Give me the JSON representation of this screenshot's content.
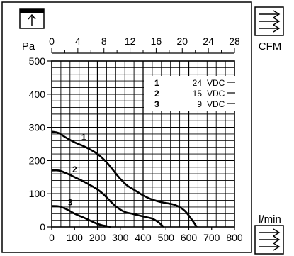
{
  "chart_data": {
    "type": "line",
    "title": "",
    "xlabel": "l/min",
    "x2label": "CFM",
    "ylabel": "Pa",
    "xlim": [
      0,
      800
    ],
    "x2lim": [
      0,
      28
    ],
    "ylim": [
      0,
      500
    ],
    "x_ticks": [
      "0",
      "100",
      "200",
      "300",
      "400",
      "500",
      "600",
      "700",
      "800"
    ],
    "x2_ticks": [
      "0",
      "4",
      "8",
      "12",
      "16",
      "20",
      "24",
      "28"
    ],
    "y_ticks": [
      "0",
      "100",
      "200",
      "300",
      "400",
      "500"
    ],
    "grid": true,
    "legend_position": "top-right",
    "legend": [
      {
        "num": "1",
        "value": "24",
        "unit": "VDC"
      },
      {
        "num": "2",
        "value": "15",
        "unit": "VDC"
      },
      {
        "num": "3",
        "value": "9",
        "unit": "VDC"
      }
    ],
    "series": [
      {
        "name": "1",
        "x": [
          0,
          30,
          60,
          100,
          150,
          200,
          240,
          270,
          300,
          330,
          360,
          400,
          430,
          470,
          500,
          540,
          580,
          610,
          635
        ],
        "y": [
          287,
          283,
          270,
          255,
          240,
          220,
          195,
          170,
          145,
          125,
          112,
          95,
          85,
          76,
          72,
          66,
          50,
          25,
          0
        ]
      },
      {
        "name": "2",
        "x": [
          0,
          30,
          60,
          100,
          150,
          200,
          230,
          260,
          290,
          320,
          350,
          380,
          410,
          440,
          465,
          490
        ],
        "y": [
          170,
          170,
          163,
          150,
          133,
          113,
          96,
          75,
          57,
          45,
          40,
          35,
          30,
          25,
          15,
          0
        ]
      },
      {
        "name": "3",
        "x": [
          0,
          30,
          60,
          100,
          150,
          190,
          220,
          260
        ],
        "y": [
          63,
          62,
          55,
          40,
          25,
          12,
          5,
          0
        ]
      }
    ],
    "curve_labels": [
      {
        "text": "1",
        "x": 130,
        "y": 262
      },
      {
        "text": "2",
        "x": 90,
        "y": 165
      },
      {
        "text": "3",
        "x": 70,
        "y": 65
      }
    ],
    "icons": {
      "top_left": "pressure-arrow-icon",
      "top_right": "airflow-arrows-icon",
      "bottom_right": "airflow-arrows-icon"
    }
  }
}
